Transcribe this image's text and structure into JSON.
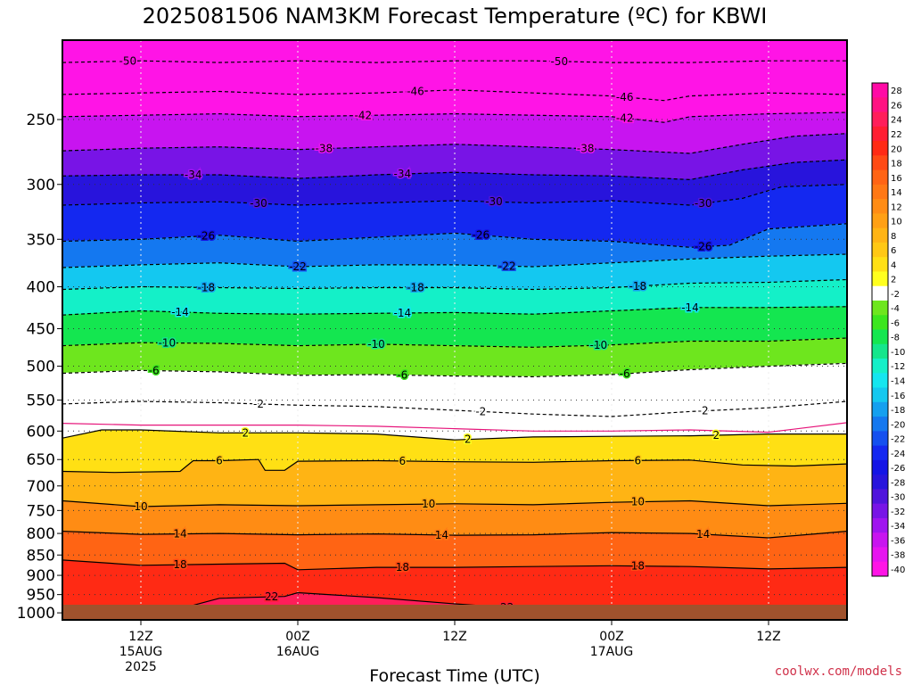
{
  "chart_data": {
    "type": "heatmap",
    "title": "2025081506 NAM3KM Forecast Temperature (ºC) for KBWI",
    "xlabel": "Forecast Time (UTC)",
    "ylabel": "",
    "y_ticks": [
      250,
      300,
      350,
      400,
      450,
      500,
      550,
      600,
      650,
      700,
      750,
      800,
      850,
      900,
      950,
      1000
    ],
    "y_range_hpa": [
      200,
      1020
    ],
    "y_scale": "log",
    "x_range_hours": [
      0,
      60
    ],
    "x_ticks": [
      {
        "hour": 6,
        "lines": [
          "12Z",
          "15AUG",
          "2025"
        ]
      },
      {
        "hour": 18,
        "lines": [
          "00Z",
          "16AUG"
        ]
      },
      {
        "hour": 30,
        "lines": [
          "12Z"
        ]
      },
      {
        "hour": 42,
        "lines": [
          "00Z",
          "17AUG"
        ]
      },
      {
        "hour": 54,
        "lines": [
          "12Z"
        ]
      }
    ],
    "grid": true,
    "colorbar_labels": [
      "28",
      "26",
      "24",
      "22",
      "20",
      "18",
      "16",
      "14",
      "12",
      "10",
      "8",
      "6",
      "4",
      "2",
      "-2",
      "-4",
      "-6",
      "-8",
      "-10",
      "-12",
      "-14",
      "-16",
      "-18",
      "-20",
      "-22",
      "-24",
      "-26",
      "-28",
      "-30",
      "-32",
      "-34",
      "-36",
      "-38",
      "-40"
    ],
    "colorbar_colors": [
      "#ff0aa5",
      "#ff1282",
      "#ff1e5a",
      "#ff1e32",
      "#ff2a14",
      "#ff4a14",
      "#ff6414",
      "#ff7814",
      "#ff8c14",
      "#ffa014",
      "#ffb414",
      "#ffc814",
      "#ffe014",
      "#ffff1e",
      "#ffffff",
      "#6ee61e",
      "#3ce61e",
      "#14e650",
      "#14e68c",
      "#14f0c8",
      "#14e6f0",
      "#14c8f0",
      "#14a0f0",
      "#1478f0",
      "#1450f0",
      "#1428f0",
      "#1414e6",
      "#2814dc",
      "#5014dc",
      "#7814e6",
      "#a014f0",
      "#c814f0",
      "#e614f0",
      "#ff14e6"
    ],
    "contours": [
      {
        "value": -50,
        "label": "-50",
        "style": "dashed",
        "points": [
          [
            0,
            213
          ],
          [
            6,
            212
          ],
          [
            12,
            213
          ],
          [
            18,
            212
          ],
          [
            24,
            213
          ],
          [
            30,
            212
          ],
          [
            36,
            212
          ],
          [
            42,
            213
          ],
          [
            48,
            213
          ],
          [
            54,
            212
          ],
          [
            60,
            212
          ]
        ],
        "labels_at": [
          5,
          38
        ]
      },
      {
        "value": -46,
        "label": "-46",
        "style": "dashed",
        "points": [
          [
            0,
            233
          ],
          [
            6,
            232
          ],
          [
            12,
            231
          ],
          [
            18,
            233
          ],
          [
            24,
            232
          ],
          [
            30,
            230
          ],
          [
            36,
            232
          ],
          [
            42,
            234
          ],
          [
            46,
            237
          ],
          [
            48,
            234
          ],
          [
            54,
            232
          ],
          [
            60,
            233
          ]
        ],
        "labels_at": [
          27,
          43
        ]
      },
      {
        "value": -42,
        "label": "-42",
        "style": "dashed",
        "points": [
          [
            0,
            248
          ],
          [
            6,
            247
          ],
          [
            12,
            246
          ],
          [
            18,
            248
          ],
          [
            24,
            247
          ],
          [
            30,
            246
          ],
          [
            36,
            247
          ],
          [
            42,
            248
          ],
          [
            46,
            252
          ],
          [
            48,
            248
          ],
          [
            54,
            246
          ],
          [
            60,
            245
          ]
        ],
        "labels_at": [
          23,
          43
        ]
      },
      {
        "value": -38,
        "label": "-38",
        "style": "dashed",
        "points": [
          [
            0,
            273
          ],
          [
            6,
            271
          ],
          [
            12,
            270
          ],
          [
            18,
            272
          ],
          [
            24,
            270
          ],
          [
            30,
            268
          ],
          [
            36,
            270
          ],
          [
            42,
            272
          ],
          [
            48,
            275
          ],
          [
            52,
            268
          ],
          [
            56,
            262
          ],
          [
            60,
            260
          ]
        ],
        "labels_at": [
          20,
          40
        ]
      },
      {
        "value": -34,
        "label": "-34",
        "style": "dashed",
        "points": [
          [
            0,
            293
          ],
          [
            6,
            292
          ],
          [
            12,
            292
          ],
          [
            18,
            295
          ],
          [
            24,
            292
          ],
          [
            30,
            290
          ],
          [
            36,
            292
          ],
          [
            42,
            293
          ],
          [
            48,
            296
          ],
          [
            52,
            288
          ],
          [
            56,
            282
          ],
          [
            60,
            280
          ]
        ],
        "labels_at": [
          10,
          26
        ]
      },
      {
        "value": -30,
        "label": "-30",
        "style": "dashed",
        "points": [
          [
            0,
            318
          ],
          [
            6,
            316
          ],
          [
            12,
            315
          ],
          [
            18,
            318
          ],
          [
            24,
            316
          ],
          [
            30,
            314
          ],
          [
            36,
            316
          ],
          [
            42,
            314
          ],
          [
            48,
            318
          ],
          [
            52,
            312
          ],
          [
            55,
            302
          ],
          [
            60,
            300
          ]
        ],
        "labels_at": [
          15,
          33,
          49
        ]
      },
      {
        "value": -26,
        "label": "-26",
        "style": "dashed",
        "points": [
          [
            0,
            352
          ],
          [
            6,
            350
          ],
          [
            12,
            346
          ],
          [
            18,
            352
          ],
          [
            24,
            348
          ],
          [
            30,
            344
          ],
          [
            36,
            350
          ],
          [
            42,
            352
          ],
          [
            48,
            358
          ],
          [
            51,
            356
          ],
          [
            54,
            340
          ],
          [
            60,
            335
          ]
        ],
        "labels_at": [
          11,
          32,
          49
        ]
      },
      {
        "value": -22,
        "label": "-22",
        "style": "dashed",
        "points": [
          [
            0,
            379
          ],
          [
            6,
            376
          ],
          [
            12,
            374
          ],
          [
            18,
            378
          ],
          [
            24,
            376
          ],
          [
            30,
            376
          ],
          [
            36,
            378
          ],
          [
            42,
            374
          ],
          [
            48,
            370
          ],
          [
            54,
            367
          ],
          [
            60,
            365
          ]
        ],
        "labels_at": [
          18,
          34
        ]
      },
      {
        "value": -18,
        "label": "-18",
        "style": "dashed",
        "points": [
          [
            0,
            403
          ],
          [
            6,
            400
          ],
          [
            12,
            401
          ],
          [
            18,
            402
          ],
          [
            24,
            401
          ],
          [
            30,
            401
          ],
          [
            36,
            403
          ],
          [
            42,
            401
          ],
          [
            48,
            396
          ],
          [
            54,
            395
          ],
          [
            60,
            392
          ]
        ],
        "labels_at": [
          11,
          27,
          44
        ]
      },
      {
        "value": -14,
        "label": "-14",
        "style": "dashed",
        "points": [
          [
            0,
            433
          ],
          [
            6,
            428
          ],
          [
            12,
            431
          ],
          [
            18,
            432
          ],
          [
            24,
            431
          ],
          [
            30,
            430
          ],
          [
            36,
            432
          ],
          [
            42,
            428
          ],
          [
            48,
            424
          ],
          [
            54,
            424
          ],
          [
            60,
            423
          ]
        ],
        "labels_at": [
          9,
          26,
          48
        ]
      },
      {
        "value": -10,
        "label": "-10",
        "style": "dashed",
        "points": [
          [
            0,
            472
          ],
          [
            6,
            468
          ],
          [
            12,
            469
          ],
          [
            18,
            472
          ],
          [
            24,
            470
          ],
          [
            30,
            472
          ],
          [
            36,
            474
          ],
          [
            42,
            471
          ],
          [
            48,
            466
          ],
          [
            54,
            466
          ],
          [
            60,
            462
          ]
        ],
        "labels_at": [
          8,
          24,
          41
        ]
      },
      {
        "value": -6,
        "label": "-6",
        "style": "dashed",
        "points": [
          [
            0,
            510
          ],
          [
            6,
            506
          ],
          [
            12,
            508
          ],
          [
            18,
            513
          ],
          [
            24,
            512
          ],
          [
            30,
            514
          ],
          [
            36,
            515
          ],
          [
            42,
            512
          ],
          [
            48,
            505
          ],
          [
            54,
            500
          ],
          [
            60,
            496
          ]
        ],
        "labels_at": [
          7,
          26,
          43
        ]
      },
      {
        "value": -2,
        "label": "-2",
        "style": "dashed",
        "points": [
          [
            0,
            556
          ],
          [
            6,
            552
          ],
          [
            12,
            554
          ],
          [
            18,
            558
          ],
          [
            24,
            560
          ],
          [
            30,
            566
          ],
          [
            36,
            572
          ],
          [
            42,
            576
          ],
          [
            48,
            568
          ],
          [
            54,
            562
          ],
          [
            60,
            552
          ]
        ],
        "labels_at": [
          15,
          32,
          49
        ]
      },
      {
        "value": 0,
        "label": "",
        "style": "freezing",
        "points": [
          [
            0,
            587
          ],
          [
            6,
            590
          ],
          [
            12,
            590
          ],
          [
            18,
            590
          ],
          [
            24,
            592
          ],
          [
            30,
            596
          ],
          [
            36,
            600
          ],
          [
            42,
            600
          ],
          [
            48,
            598
          ],
          [
            54,
            602
          ],
          [
            60,
            586
          ]
        ],
        "labels_at": []
      },
      {
        "value": 2,
        "label": "2",
        "style": "solid",
        "points": [
          [
            0,
            612
          ],
          [
            3,
            598
          ],
          [
            6,
            598
          ],
          [
            12,
            603
          ],
          [
            18,
            603
          ],
          [
            24,
            605
          ],
          [
            30,
            615
          ],
          [
            36,
            610
          ],
          [
            42,
            609
          ],
          [
            48,
            608
          ],
          [
            54,
            605
          ],
          [
            60,
            605
          ]
        ],
        "labels_at": [
          14,
          31,
          50
        ]
      },
      {
        "value": 6,
        "label": "6",
        "style": "solid",
        "points": [
          [
            0,
            672
          ],
          [
            4,
            674
          ],
          [
            9,
            672
          ],
          [
            10,
            652
          ],
          [
            12,
            652
          ],
          [
            15,
            650
          ],
          [
            15.5,
            670
          ],
          [
            17,
            670
          ],
          [
            18,
            653
          ],
          [
            24,
            652
          ],
          [
            30,
            654
          ],
          [
            36,
            655
          ],
          [
            42,
            652
          ],
          [
            48,
            651
          ],
          [
            52,
            660
          ],
          [
            56,
            662
          ],
          [
            60,
            658
          ]
        ],
        "labels_at": [
          12,
          26,
          44
        ]
      },
      {
        "value": 10,
        "label": "10",
        "style": "solid",
        "points": [
          [
            0,
            730
          ],
          [
            6,
            742
          ],
          [
            12,
            738
          ],
          [
            18,
            740
          ],
          [
            24,
            738
          ],
          [
            30,
            736
          ],
          [
            36,
            738
          ],
          [
            42,
            733
          ],
          [
            48,
            730
          ],
          [
            54,
            740
          ],
          [
            60,
            735
          ]
        ],
        "labels_at": [
          6,
          28,
          44
        ]
      },
      {
        "value": 14,
        "label": "14",
        "style": "solid",
        "points": [
          [
            0,
            795
          ],
          [
            6,
            802
          ],
          [
            12,
            800
          ],
          [
            18,
            803
          ],
          [
            24,
            801
          ],
          [
            30,
            804
          ],
          [
            36,
            803
          ],
          [
            42,
            798
          ],
          [
            48,
            800
          ],
          [
            54,
            810
          ],
          [
            60,
            795
          ]
        ],
        "labels_at": [
          9,
          29,
          49
        ]
      },
      {
        "value": 18,
        "label": "18",
        "style": "solid",
        "points": [
          [
            0,
            862
          ],
          [
            6,
            875
          ],
          [
            12,
            872
          ],
          [
            17,
            870
          ],
          [
            18,
            886
          ],
          [
            24,
            880
          ],
          [
            30,
            880
          ],
          [
            36,
            878
          ],
          [
            42,
            876
          ],
          [
            48,
            878
          ],
          [
            54,
            884
          ],
          [
            60,
            880
          ]
        ],
        "labels_at": [
          9,
          26,
          44
        ]
      },
      {
        "value": 22,
        "label": "22",
        "style": "solid",
        "points": [
          [
            6,
            1018
          ],
          [
            12,
            960
          ],
          [
            17,
            955
          ],
          [
            18,
            945
          ],
          [
            24,
            958
          ],
          [
            30,
            975
          ],
          [
            36,
            990
          ],
          [
            42,
            1000
          ],
          [
            48,
            1005
          ],
          [
            54,
            1012
          ],
          [
            60,
            990
          ]
        ],
        "labels_at": [
          16,
          34
        ]
      }
    ]
  },
  "credit": "coolwx.com/models"
}
